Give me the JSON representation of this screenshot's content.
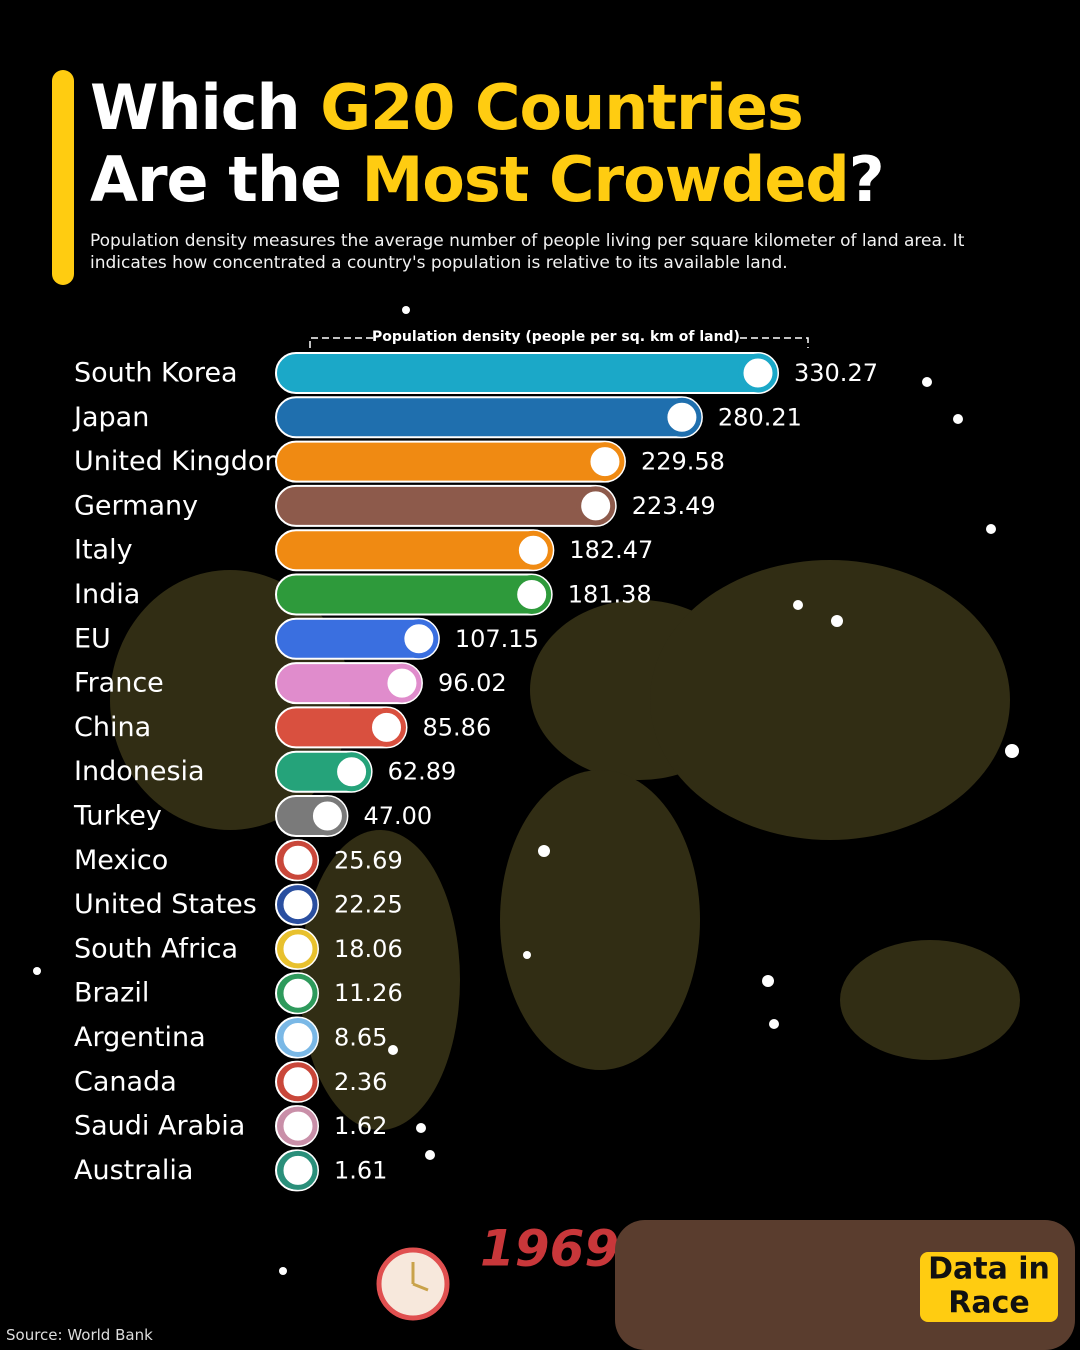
{
  "chart_data": {
    "type": "bar",
    "title": [
      {
        "text": "Which ",
        "color": "#ffffff"
      },
      {
        "text": "G20 Countries",
        "color": "#ffcc11"
      },
      {
        "text": " Are the ",
        "color": "#ffffff"
      },
      {
        "text": "Most Crowded",
        "color": "#ffcc11"
      },
      {
        "text": "?",
        "color": "#ffffff"
      }
    ],
    "subtitle": "Population density measures the average number of people living per square kilometer of land area. It indicates how concentrated a country's population is relative to its available land.",
    "x_label": "Population density (people per sq. km of land)",
    "categories": [
      "South Korea",
      "Japan",
      "United Kingdom",
      "Germany",
      "Italy",
      "India",
      "EU",
      "France",
      "China",
      "Indonesia",
      "Turkey",
      "Mexico",
      "United States",
      "South Africa",
      "Brazil",
      "Argentina",
      "Canada",
      "Saudi Arabia",
      "Australia"
    ],
    "values": [
      330.27,
      280.21,
      229.58,
      223.49,
      182.47,
      181.38,
      107.15,
      96.02,
      85.86,
      62.89,
      47.0,
      25.69,
      22.25,
      18.06,
      11.26,
      8.65,
      2.36,
      1.62,
      1.61
    ],
    "value_labels": [
      "330.27",
      "280.21",
      "229.58",
      "223.49",
      "182.47",
      "181.38",
      "107.15",
      "96.02",
      "85.86",
      "62.89",
      "47.00",
      "25.69",
      "22.25",
      "18.06",
      "11.26",
      "8.65",
      "2.36",
      "1.62",
      "1.61"
    ],
    "colors": [
      "#1ba8c8",
      "#1f6fae",
      "#f08a12",
      "#8d5a4b",
      "#f08a12",
      "#2e9a3b",
      "#3a6fe0",
      "#e08ccc",
      "#d9503f",
      "#25a37a",
      "#7a7a7a",
      "#c9473a",
      "#2a4fa0",
      "#e8c12e",
      "#2e9a5c",
      "#7ab8e6",
      "#c9473a",
      "#c98fa8",
      "#2a8f7a"
    ],
    "year": "1969",
    "source": "Source: World Bank",
    "logo": [
      "Data in",
      "Race"
    ]
  }
}
